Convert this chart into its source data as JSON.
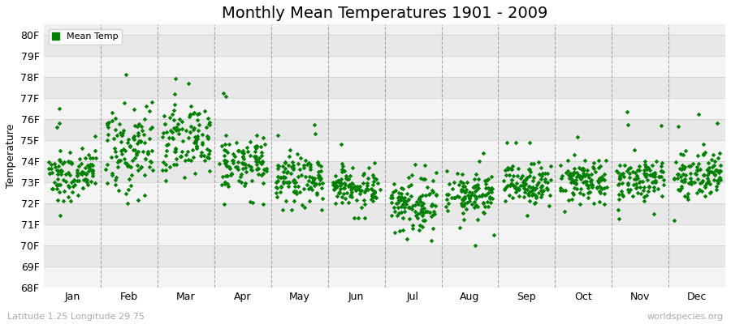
{
  "title": "Monthly Mean Temperatures 1901 - 2009",
  "ylabel": "Temperature",
  "xlabel_left": "Latitude 1.25 Longitude 29.75",
  "xlabel_right": "worldspecies.org",
  "legend_label": "Mean Temp",
  "months": [
    "Jan",
    "Feb",
    "Mar",
    "Apr",
    "May",
    "Jun",
    "Jul",
    "Aug",
    "Sep",
    "Oct",
    "Nov",
    "Dec"
  ],
  "month_positions": [
    0.5,
    1.5,
    2.5,
    3.5,
    4.5,
    5.5,
    6.5,
    7.5,
    8.5,
    9.5,
    10.5,
    11.5
  ],
  "divider_positions": [
    1,
    2,
    3,
    4,
    5,
    6,
    7,
    8,
    9,
    10,
    11
  ],
  "ylim": [
    68,
    80.5
  ],
  "yticks": [
    68,
    69,
    70,
    71,
    72,
    73,
    74,
    75,
    76,
    77,
    78,
    79,
    80
  ],
  "ytick_labels": [
    "68F",
    "69F",
    "70F",
    "71F",
    "72F",
    "73F",
    "74F",
    "75F",
    "76F",
    "77F",
    "78F",
    "79F",
    "80F"
  ],
  "dot_color": "#008000",
  "dot_size": 8,
  "background_color": "#f0f0f0",
  "stripe_light": "#f4f4f4",
  "stripe_dark": "#e8e8e8",
  "grid_color": "#cccccc",
  "dashed_line_color": "#888888",
  "title_fontsize": 14,
  "axis_fontsize": 9,
  "tick_fontsize": 9,
  "random_seed": 12345,
  "n_years": 109,
  "monthly_means": [
    73.4,
    74.5,
    75.0,
    73.9,
    73.2,
    72.8,
    72.0,
    72.4,
    72.9,
    73.1,
    73.2,
    73.4
  ],
  "monthly_stds": [
    0.55,
    0.85,
    0.85,
    0.65,
    0.55,
    0.45,
    0.55,
    0.5,
    0.45,
    0.5,
    0.5,
    0.55
  ],
  "monthly_outlier_high": [
    4.5,
    4.0,
    4.0,
    3.5,
    3.5,
    2.0,
    1.5,
    1.5,
    2.0,
    2.5,
    3.5,
    5.5
  ],
  "monthly_outlier_low": [
    4.5,
    3.0,
    2.0,
    2.0,
    1.5,
    1.5,
    2.0,
    2.5,
    1.5,
    1.5,
    2.0,
    2.5
  ]
}
